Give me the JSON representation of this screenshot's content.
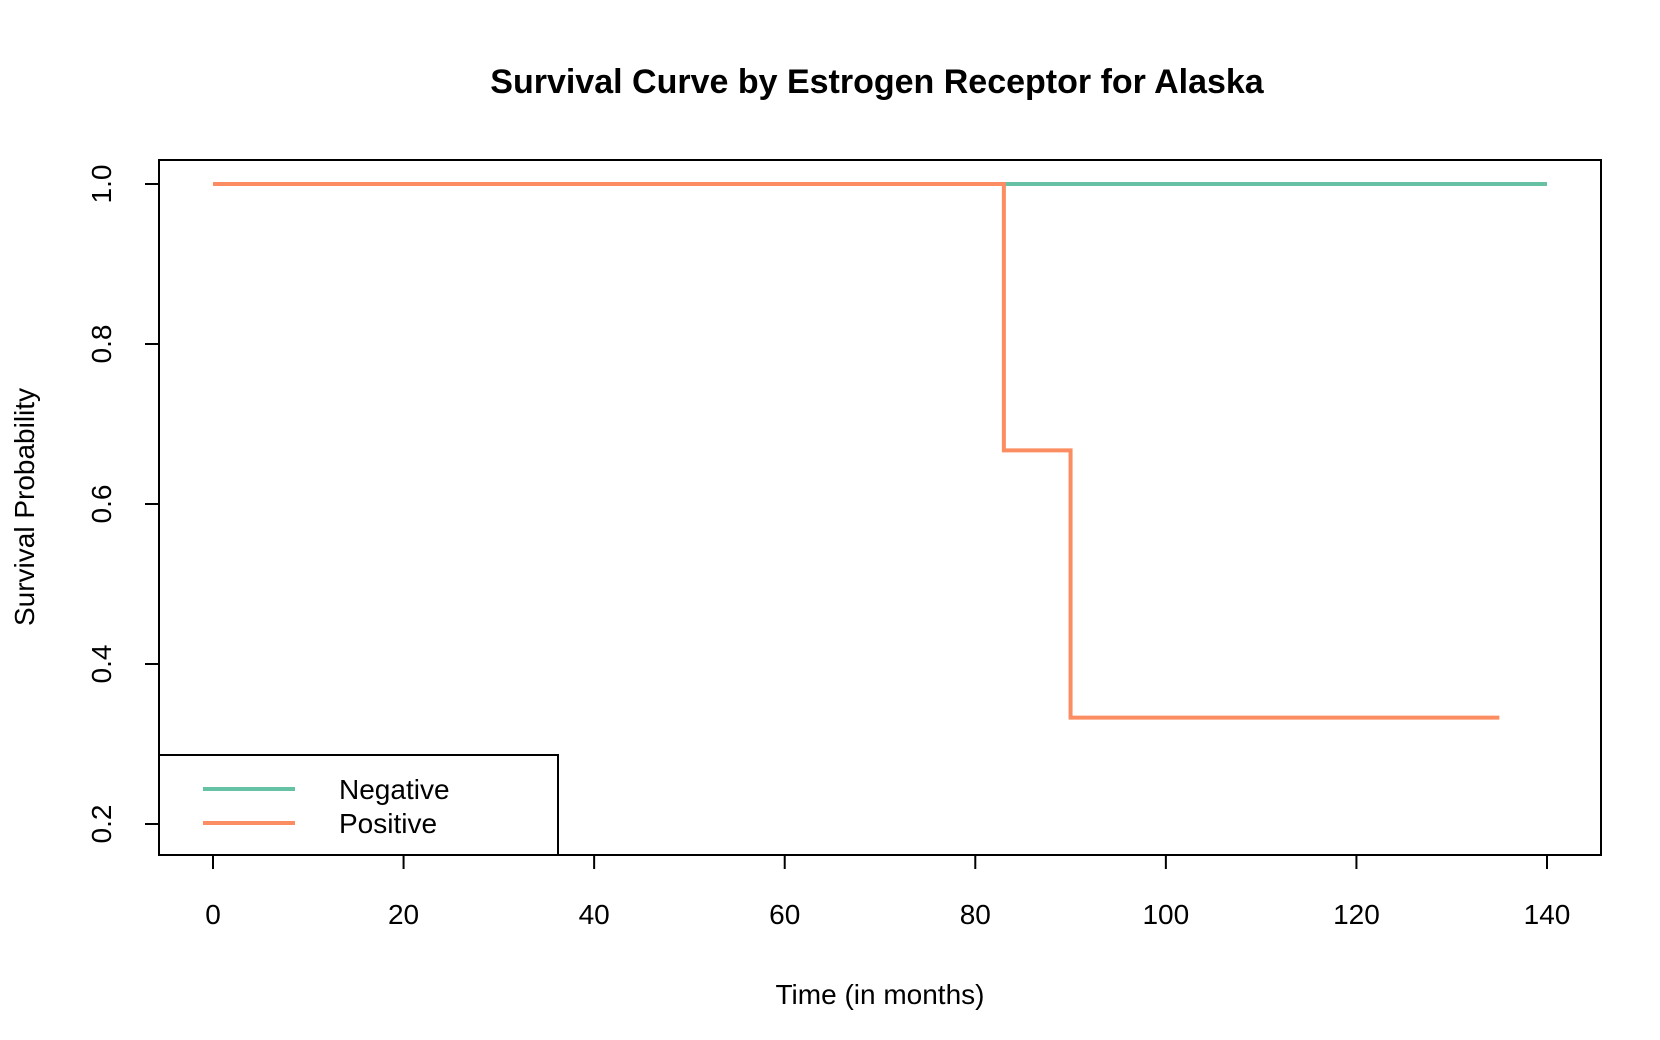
{
  "chart_data": {
    "type": "line",
    "title": "Survival Curve by Estrogen Receptor for Alaska",
    "xlabel": "Time (in months)",
    "ylabel": "Survival Probability",
    "xlim": [
      0,
      140
    ],
    "ylim": [
      0.2,
      1.0
    ],
    "x_ticks": [
      0,
      20,
      40,
      60,
      80,
      100,
      120,
      140
    ],
    "x_tick_labels": [
      "0",
      "20",
      "40",
      "60",
      "80",
      "100",
      "120",
      "140"
    ],
    "y_ticks": [
      0.2,
      0.4,
      0.6,
      0.8,
      1.0
    ],
    "y_tick_labels": [
      "0.2",
      "0.4",
      "0.6",
      "0.8",
      "1.0"
    ],
    "grid": false,
    "legend_position": "bottom-left",
    "series": [
      {
        "name": "Negative",
        "color": "#66C2A5",
        "step": true,
        "x": [
          0,
          140
        ],
        "y": [
          1.0,
          1.0
        ]
      },
      {
        "name": "Positive",
        "color": "#FC8D62",
        "step": true,
        "x": [
          0,
          83,
          90,
          135
        ],
        "y": [
          1.0,
          0.667,
          0.333,
          0.333
        ]
      }
    ]
  }
}
